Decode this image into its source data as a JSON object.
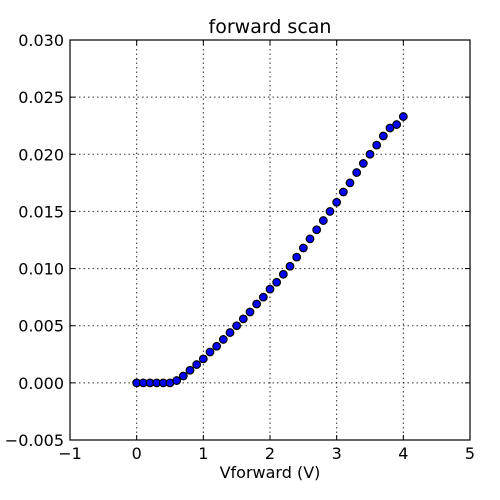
{
  "chart_data": {
    "type": "scatter",
    "title": "forward scan",
    "xlabel": "Vforward (V)",
    "ylabel": "",
    "xlim": [
      -1,
      5
    ],
    "ylim": [
      -0.005,
      0.03
    ],
    "grid": true,
    "xticks": [
      -1,
      0,
      1,
      2,
      3,
      4,
      5
    ],
    "xtick_labels": [
      "−1",
      "0",
      "1",
      "2",
      "3",
      "4",
      "5"
    ],
    "yticks": [
      -0.005,
      0,
      0.005,
      0.01,
      0.015,
      0.02,
      0.025,
      0.03
    ],
    "ytick_labels": [
      "−0.005",
      "0.000",
      "0.005",
      "0.010",
      "0.015",
      "0.020",
      "0.025",
      "0.030"
    ],
    "marker_color": "#0000ff",
    "series": [
      {
        "x": [
          0.0,
          0.1,
          0.2,
          0.3,
          0.4,
          0.5,
          0.6,
          0.7,
          0.8,
          0.9,
          1.0,
          1.1,
          1.2,
          1.3,
          1.4,
          1.5,
          1.6,
          1.7,
          1.8,
          1.9,
          2.0,
          2.1,
          2.2,
          2.3,
          2.4,
          2.5,
          2.6,
          2.7,
          2.8,
          2.9,
          3.0,
          3.1,
          3.2,
          3.3,
          3.4,
          3.5,
          3.6,
          3.7,
          3.8,
          3.9,
          4.0
        ],
        "y": [
          0.0,
          0.0,
          0.0,
          0.0,
          0.0,
          0.0,
          0.0002,
          0.0006,
          0.0011,
          0.0016,
          0.0021,
          0.0027,
          0.0032,
          0.0038,
          0.0044,
          0.005,
          0.0056,
          0.0062,
          0.0069,
          0.0075,
          0.0082,
          0.0088,
          0.0095,
          0.0102,
          0.011,
          0.0118,
          0.0126,
          0.0134,
          0.0142,
          0.015,
          0.0158,
          0.0167,
          0.0175,
          0.0184,
          0.0192,
          0.02,
          0.0208,
          0.0216,
          0.0223,
          0.0226,
          0.0233
        ]
      }
    ]
  }
}
